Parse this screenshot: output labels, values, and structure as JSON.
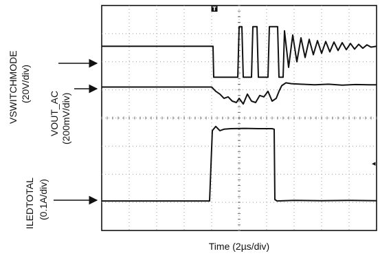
{
  "chart_data": {
    "type": "line",
    "title": "",
    "xlabel": "Time (2µs/div)",
    "x_unit": "µs",
    "x_per_div": 2,
    "xlim": [
      0,
      20
    ],
    "ylim_divs": [
      0,
      8
    ],
    "grid": true,
    "trigger": {
      "label": "T",
      "time": 8.2
    },
    "offscreen_marker": "◂",
    "channels": [
      {
        "name": "VSWITCHMODE",
        "scale": "(20V/div)",
        "x": [
          0,
          8.1,
          8.15,
          9.9,
          10.0,
          10.2,
          10.3,
          10.9,
          11.0,
          11.3,
          11.4,
          12.1,
          12.2,
          12.8,
          12.9,
          13.2,
          13.3,
          13.6,
          13.9,
          14.2,
          14.5,
          14.8,
          15.1,
          15.4,
          15.7,
          16.0,
          16.3,
          16.6,
          16.9,
          17.2,
          17.5,
          17.8,
          18.1,
          18.4,
          18.7,
          19.0,
          19.3,
          19.6,
          20.0
        ],
        "y": [
          6.55,
          6.55,
          5.45,
          5.45,
          7.25,
          7.25,
          5.45,
          5.45,
          7.25,
          7.25,
          5.45,
          5.45,
          7.25,
          7.25,
          5.45,
          5.45,
          7.1,
          5.8,
          6.95,
          6.0,
          6.85,
          6.15,
          6.8,
          6.25,
          6.75,
          6.3,
          6.72,
          6.35,
          6.7,
          6.4,
          6.68,
          6.43,
          6.65,
          6.45,
          6.62,
          6.48,
          6.6,
          6.52,
          6.55
        ]
      },
      {
        "name": "VOUT_AC",
        "scale": "(200mV/div)",
        "x": [
          0,
          8.0,
          8.3,
          8.6,
          8.9,
          9.2,
          9.5,
          9.8,
          10.0,
          10.3,
          10.6,
          10.9,
          11.2,
          11.5,
          11.8,
          12.1,
          12.4,
          12.7,
          12.9,
          13.1,
          13.4,
          13.8,
          14.5,
          15.5,
          16.5,
          17.5,
          18.5,
          19.5,
          20.0
        ],
        "y": [
          5.1,
          5.1,
          4.95,
          4.85,
          4.7,
          4.75,
          4.6,
          4.55,
          4.7,
          4.5,
          4.85,
          4.6,
          4.55,
          4.8,
          4.75,
          4.95,
          4.6,
          4.7,
          4.95,
          5.15,
          5.25,
          5.22,
          5.2,
          5.18,
          5.2,
          5.17,
          5.19,
          5.18,
          5.18
        ]
      },
      {
        "name": "ILEDTOTAL",
        "scale": "(0.1A/div)",
        "x": [
          0,
          7.85,
          8.05,
          8.3,
          8.6,
          8.9,
          9.4,
          10.4,
          11.4,
          12.4,
          12.55,
          12.6,
          12.75,
          14.0,
          16.0,
          18.0,
          20.0
        ],
        "y": [
          1.05,
          1.05,
          3.55,
          3.7,
          3.55,
          3.6,
          3.62,
          3.63,
          3.62,
          3.62,
          3.6,
          1.1,
          1.05,
          1.07,
          1.06,
          1.07,
          1.06
        ]
      }
    ]
  }
}
